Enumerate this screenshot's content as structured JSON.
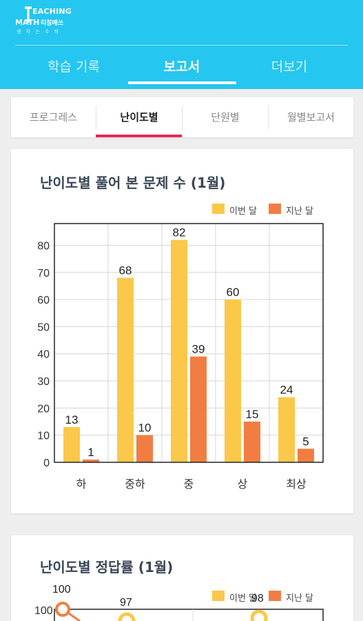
{
  "app": {
    "logo_line1": "EACHING",
    "logo_line2": "MATH",
    "logo_kr": "티칭매쓰",
    "logo_sub": "생 각 는 수 학"
  },
  "nav": {
    "tabs": [
      {
        "label": "학습 기록"
      },
      {
        "label": "보고서"
      },
      {
        "label": "더보기"
      }
    ],
    "active_index": 1
  },
  "subnav": {
    "tabs": [
      {
        "label": "프로그레스"
      },
      {
        "label": "난이도별"
      },
      {
        "label": "단원별"
      },
      {
        "label": "월별보고서"
      }
    ],
    "active_index": 1
  },
  "colors": {
    "header": "#25c6ef",
    "this_month": "#fcc84a",
    "last_month": "#f27d42",
    "active_subtab": "#e5285b"
  },
  "chart1": {
    "title": "난이도별 풀어 본 문제 수 (1월)",
    "chart_data": {
      "type": "bar",
      "title": "난이도별 풀어 본 문제 수 (1월)",
      "categories": [
        "하",
        "중하",
        "중",
        "상",
        "최상"
      ],
      "series": [
        {
          "name": "이번 달",
          "values": [
            13,
            68,
            82,
            60,
            24
          ]
        },
        {
          "name": "지난 달",
          "values": [
            1,
            10,
            39,
            15,
            5
          ]
        }
      ],
      "yticks": [
        "0",
        "10",
        "20",
        "30",
        "40",
        "50",
        "60",
        "70",
        "80"
      ],
      "ylim": [
        0,
        88
      ],
      "grid": true,
      "legend": "top-right"
    }
  },
  "chart2": {
    "title": "난이도별 정답률 (1월)",
    "chart_data": {
      "type": "line",
      "title": "난이도별 정답률 (1월)",
      "legend_labels": [
        "이번 달",
        "지난 달"
      ],
      "visible_ytick": "100",
      "visible_data_labels": [
        "100",
        "97",
        "98"
      ],
      "legend": "top-right"
    }
  }
}
